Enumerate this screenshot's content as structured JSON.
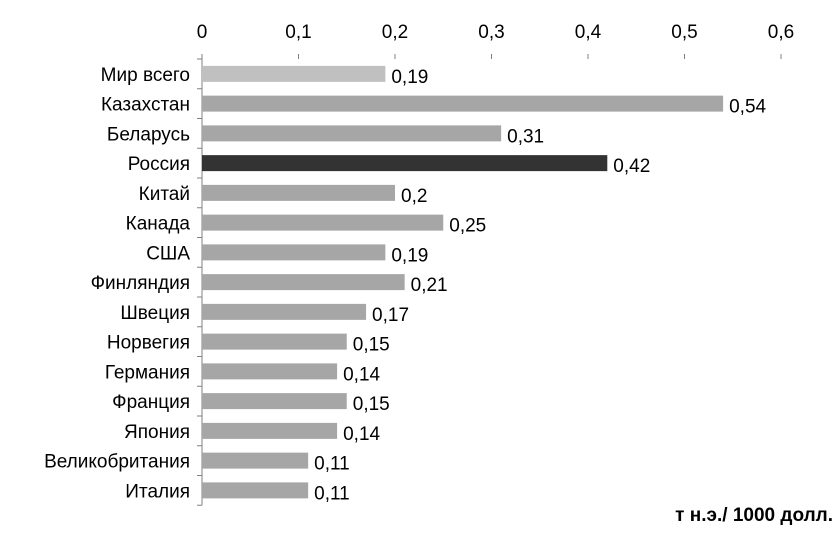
{
  "chart_data": {
    "type": "bar",
    "orientation": "horizontal",
    "categories": [
      "Мир всего",
      "Казахстан",
      "Беларусь",
      "Россия",
      "Китай",
      "Канада",
      "США",
      "Финляндия",
      "Швеция",
      "Норвегия",
      "Германия",
      "Франция",
      "Япония",
      "Великобритания",
      "Италия"
    ],
    "values": [
      0.19,
      0.54,
      0.31,
      0.42,
      0.2,
      0.25,
      0.19,
      0.21,
      0.17,
      0.15,
      0.14,
      0.15,
      0.14,
      0.11,
      0.11
    ],
    "value_labels": [
      "0,19",
      "0,54",
      "0,31",
      "0,42",
      "0,2",
      "0,25",
      "0,19",
      "0,21",
      "0,17",
      "0,15",
      "0,14",
      "0,15",
      "0,14",
      "0,11",
      "0,11"
    ],
    "xlim": [
      0,
      0.6
    ],
    "x_ticks": [
      0,
      0.1,
      0.2,
      0.3,
      0.4,
      0.5,
      0.6
    ],
    "x_tick_labels": [
      "0",
      "0,1",
      "0,2",
      "0,3",
      "0,4",
      "0,5",
      "0,6"
    ],
    "x_axis_position": "top",
    "grid": false,
    "legend": "none",
    "unit_label": "т н.э./ 1000 долл.",
    "colors": {
      "world_bar": "#c0c0c0",
      "default_bar": "#a6a6a6",
      "highlight_bar": "#333333",
      "axis": "#808080"
    },
    "highlight_category": "Россия",
    "world_category": "Мир всего"
  }
}
